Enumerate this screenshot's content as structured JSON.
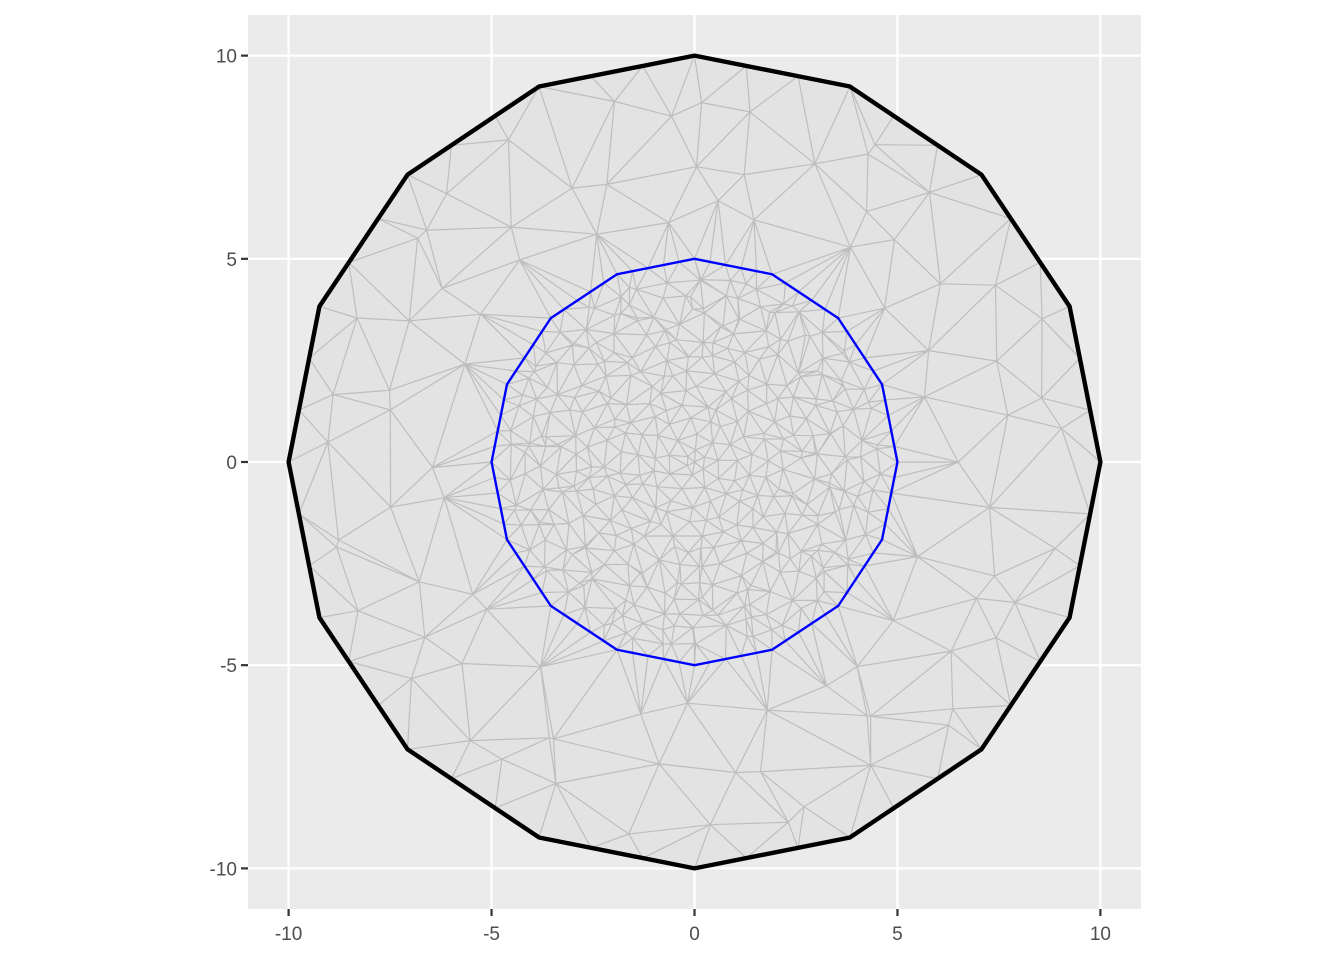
{
  "chart_data": {
    "type": "mesh",
    "title": "",
    "xlabel": "",
    "ylabel": "",
    "xlim": [
      -11.0,
      11.0
    ],
    "ylim": [
      -11.0,
      11.0
    ],
    "grid": true,
    "x_ticks": [
      -10,
      -5,
      0,
      5,
      10
    ],
    "y_ticks": [
      -10,
      -5,
      0,
      5,
      10
    ],
    "x_tick_labels": [
      "-10",
      "-5",
      "0",
      "5",
      "10"
    ],
    "y_tick_labels": [
      "-10",
      "-5",
      "0",
      "5",
      "10"
    ],
    "outer_boundary": {
      "sides": 16,
      "radius": 10,
      "color": "#000000",
      "points": [
        [
          10,
          0
        ],
        [
          9.24,
          3.83
        ],
        [
          7.07,
          7.07
        ],
        [
          3.83,
          9.24
        ],
        [
          0,
          10
        ],
        [
          -3.83,
          9.24
        ],
        [
          -7.07,
          7.07
        ],
        [
          -9.24,
          3.83
        ],
        [
          -10,
          0
        ],
        [
          -9.24,
          -3.83
        ],
        [
          -7.07,
          -7.07
        ],
        [
          -3.83,
          -9.24
        ],
        [
          0,
          -10
        ],
        [
          3.83,
          -9.24
        ],
        [
          7.07,
          -7.07
        ],
        [
          9.24,
          -3.83
        ]
      ]
    },
    "inner_boundary": {
      "sides": 16,
      "radius": 5,
      "color": "#0000ff",
      "points": [
        [
          5,
          0
        ],
        [
          4.62,
          1.91
        ],
        [
          3.54,
          3.54
        ],
        [
          1.91,
          4.62
        ],
        [
          0,
          5
        ],
        [
          -1.91,
          4.62
        ],
        [
          -3.54,
          3.54
        ],
        [
          -4.62,
          1.91
        ],
        [
          -5,
          0
        ],
        [
          -4.62,
          -1.91
        ],
        [
          -3.54,
          -3.54
        ],
        [
          -1.91,
          -4.62
        ],
        [
          0,
          -5
        ],
        [
          1.91,
          -4.62
        ],
        [
          3.54,
          -3.54
        ],
        [
          4.62,
          -1.91
        ]
      ]
    },
    "mesh": {
      "edge_color": "#bebebe",
      "fill_color": "#e3e3e3",
      "outer_ring_vertex_spacing": 1.6,
      "inner_region_vertex_spacing": 0.45
    },
    "panel_color": "#ebebeb",
    "grid_color": "#ffffff"
  }
}
